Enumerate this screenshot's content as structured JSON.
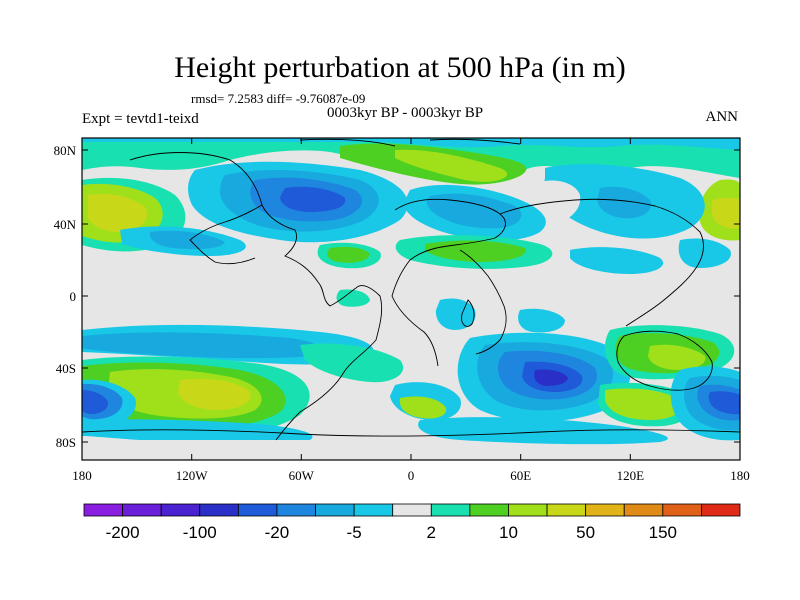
{
  "title": "Height perturbation at 500 hPa (in m)",
  "stats_line": "rmsd= 7.2583 diff= -9.76087e-09",
  "period_line": "0003kyr BP - 0003kyr BP",
  "experiment_label": "Expt = tevtd1-teixd",
  "season_label": "ANN",
  "lat_ticks": [
    "80N",
    "40N",
    "0",
    "40S",
    "80S"
  ],
  "lon_ticks": [
    "180",
    "120W",
    "60W",
    "0",
    "60E",
    "120E",
    "180"
  ],
  "colorbar": {
    "colors": [
      "#8a1ee0",
      "#6a1fd8",
      "#4a22cf",
      "#2a2fc8",
      "#1f5ad8",
      "#1f86e0",
      "#18aade",
      "#19c8e6",
      "#e6e6e6",
      "#19e0b0",
      "#4ed022",
      "#9fe01a",
      "#c8d818",
      "#e0b418",
      "#e08a18",
      "#e06018",
      "#e02a18"
    ],
    "labels": [
      "-200",
      "-100",
      "-20",
      "-5",
      "2",
      "10",
      "50",
      "150"
    ]
  }
}
